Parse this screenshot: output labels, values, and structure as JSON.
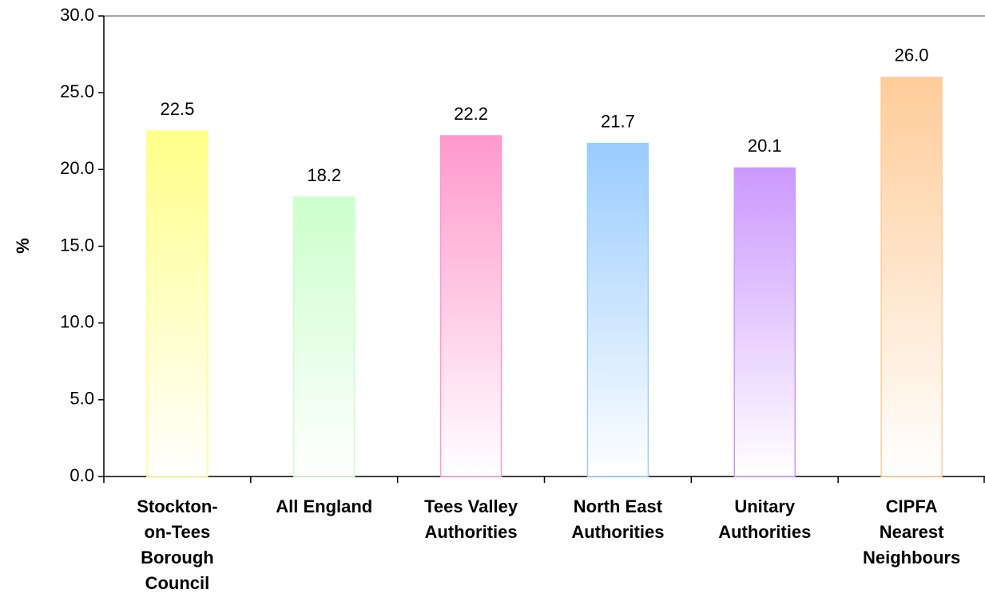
{
  "chart_data": {
    "type": "bar",
    "y_label": "%",
    "categories": [
      "Stockton-on-Tees Borough Council",
      "All England",
      "Tees Valley Authorities",
      "North East Authorities",
      "Unitary Authorities",
      "CIPFA Nearest Neighbours"
    ],
    "values": [
      22.5,
      18.2,
      22.2,
      21.7,
      20.1,
      26.0
    ],
    "value_labels": [
      "22.5",
      "18.2",
      "22.2",
      "21.7",
      "20.1",
      "26.0"
    ],
    "colors": [
      "#ffff88",
      "#ccffcc",
      "#ff99cc",
      "#99ccff",
      "#cc99ff",
      "#ffcc99"
    ],
    "ylim": [
      0,
      30
    ],
    "yticks": [
      {
        "value": 0,
        "label": "0.0"
      },
      {
        "value": 5,
        "label": "5.0"
      },
      {
        "value": 10,
        "label": "10.0"
      },
      {
        "value": 15,
        "label": "15.0"
      },
      {
        "value": 20,
        "label": "20.0"
      },
      {
        "value": 25,
        "label": "25.0"
      },
      {
        "value": 30,
        "label": "30.0"
      }
    ]
  }
}
